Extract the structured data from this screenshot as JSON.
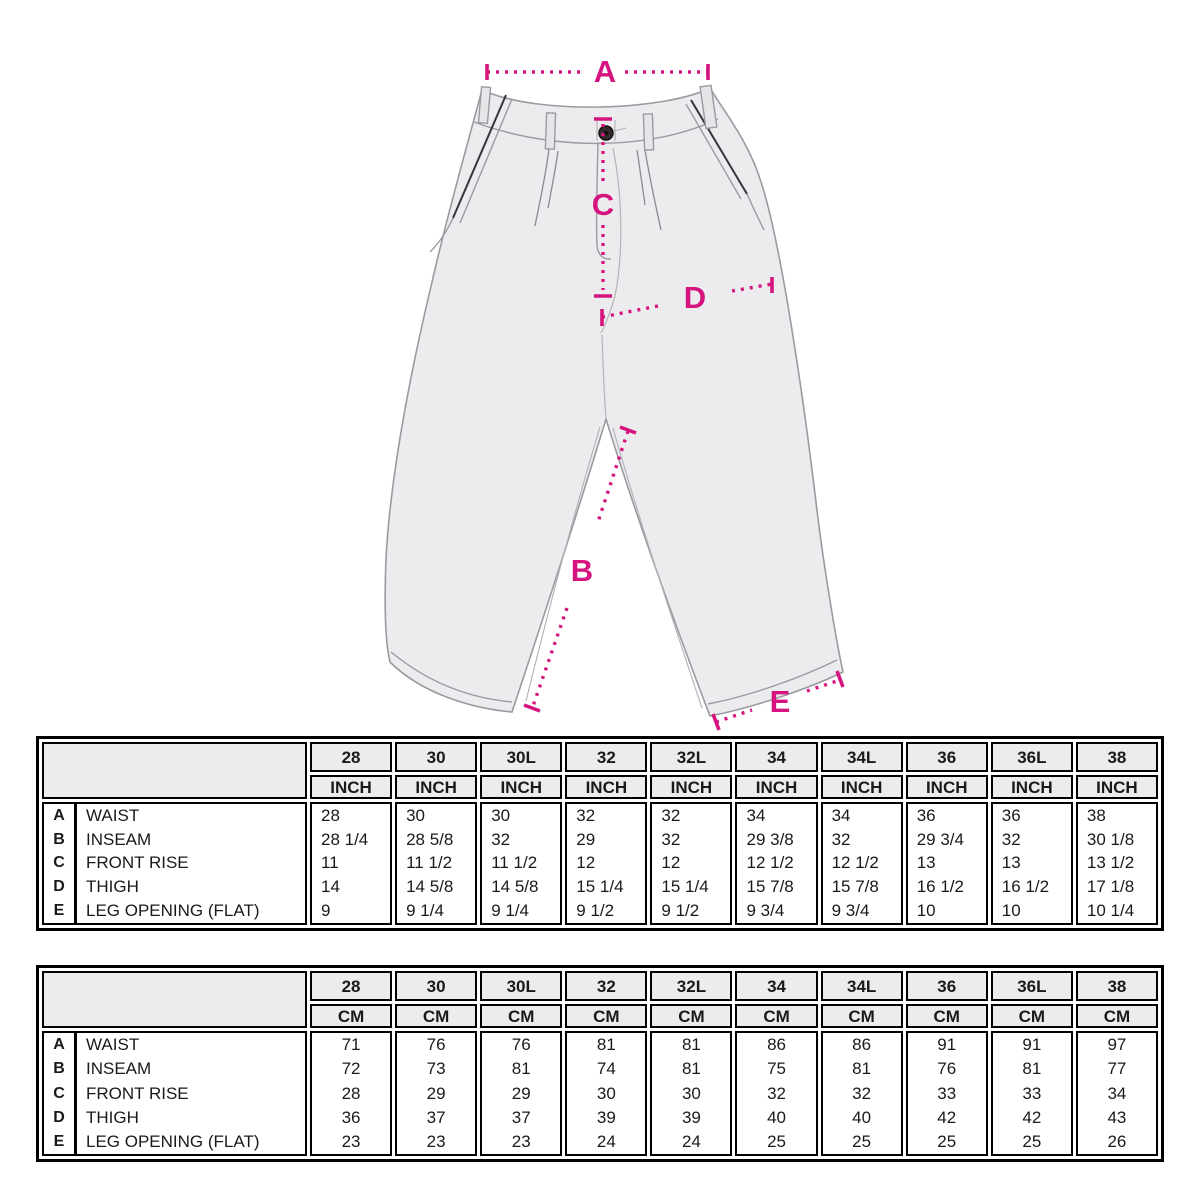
{
  "accent_color": "#d6147f",
  "diagram": {
    "markers": [
      "A",
      "B",
      "C",
      "D",
      "E"
    ]
  },
  "tables": [
    {
      "unit": "INCH",
      "align": "left",
      "sizes": [
        "28",
        "30",
        "30L",
        "32",
        "32L",
        "34",
        "34L",
        "36",
        "36L",
        "38"
      ],
      "rows": [
        {
          "letter": "A",
          "label": "WAIST",
          "values": [
            "28",
            "30",
            "30",
            "32",
            "32",
            "34",
            "34",
            "36",
            "36",
            "38"
          ]
        },
        {
          "letter": "B",
          "label": "INSEAM",
          "values": [
            "28 1/4",
            "28 5/8",
            "32",
            "29",
            "32",
            "29 3/8",
            "32",
            "29 3/4",
            "32",
            "30 1/8"
          ]
        },
        {
          "letter": "C",
          "label": "FRONT RISE",
          "values": [
            "11",
            "11 1/2",
            "11 1/2",
            "12",
            "12",
            "12 1/2",
            "12 1/2",
            "13",
            "13",
            "13 1/2"
          ]
        },
        {
          "letter": "D",
          "label": "THIGH",
          "values": [
            "14",
            "14 5/8",
            "14 5/8",
            "15 1/4",
            "15 1/4",
            "15 7/8",
            "15 7/8",
            "16 1/2",
            "16 1/2",
            "17 1/8"
          ]
        },
        {
          "letter": "E",
          "label": "LEG OPENING (FLAT)",
          "values": [
            "9",
            "9 1/4",
            "9 1/4",
            "9 1/2",
            "9 1/2",
            "9 3/4",
            "9 3/4",
            "10",
            "10",
            "10 1/4"
          ]
        }
      ]
    },
    {
      "unit": "CM",
      "align": "center",
      "sizes": [
        "28",
        "30",
        "30L",
        "32",
        "32L",
        "34",
        "34L",
        "36",
        "36L",
        "38"
      ],
      "rows": [
        {
          "letter": "A",
          "label": "WAIST",
          "values": [
            "71",
            "76",
            "76",
            "81",
            "81",
            "86",
            "86",
            "91",
            "91",
            "97"
          ]
        },
        {
          "letter": "B",
          "label": "INSEAM",
          "values": [
            "72",
            "73",
            "81",
            "74",
            "81",
            "75",
            "81",
            "76",
            "81",
            "77"
          ]
        },
        {
          "letter": "C",
          "label": "FRONT RISE",
          "values": [
            "28",
            "29",
            "29",
            "30",
            "30",
            "32",
            "32",
            "33",
            "33",
            "34"
          ]
        },
        {
          "letter": "D",
          "label": "THIGH",
          "values": [
            "36",
            "37",
            "37",
            "39",
            "39",
            "40",
            "40",
            "42",
            "42",
            "43"
          ]
        },
        {
          "letter": "E",
          "label": "LEG OPENING (FLAT)",
          "values": [
            "23",
            "23",
            "23",
            "24",
            "24",
            "25",
            "25",
            "25",
            "25",
            "26"
          ]
        }
      ]
    }
  ]
}
